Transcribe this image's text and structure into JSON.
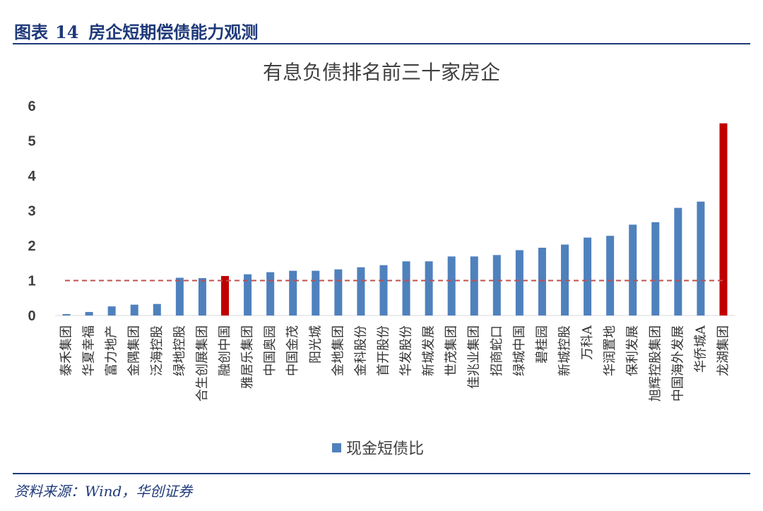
{
  "figure": {
    "label": "图表",
    "number": "14",
    "caption": "房企短期偿债能力观测"
  },
  "source": "资料来源：Wind，华创证券",
  "colors": {
    "bar": "#4f81bd",
    "highlight": "#c00000",
    "threshold": "#c0504d",
    "text": "#404040",
    "frame": "#1f3a7a"
  },
  "chart_data": {
    "type": "bar",
    "title": "有息负债排名前三十家房企",
    "xlabel": "",
    "ylabel": "",
    "ylim": [
      0,
      6
    ],
    "yticks": [
      0,
      1,
      2,
      3,
      4,
      5,
      6
    ],
    "grid": false,
    "legend": {
      "position": "bottom",
      "entries": [
        "现金短债比"
      ]
    },
    "threshold": 1,
    "categories": [
      "泰禾集团",
      "华夏幸福",
      "富力地产",
      "金隅集团",
      "泛海控股",
      "绿地控股",
      "合生创展集团",
      "融创中国",
      "雅居乐集团",
      "中国奥园",
      "中国金茂",
      "阳光城",
      "金地集团",
      "金科股份",
      "首开股份",
      "华发股份",
      "新城发展",
      "世茂集团",
      "佳兆业集团",
      "招商蛇口",
      "绿城中国",
      "碧桂园",
      "新城控股",
      "万科A",
      "华润置地",
      "保利发展",
      "旭辉控股集团",
      "中国海外发展",
      "华侨城A",
      "龙湖集团"
    ],
    "series": [
      {
        "name": "现金短债比",
        "values": [
          0.04,
          0.1,
          0.26,
          0.31,
          0.33,
          1.08,
          1.07,
          1.13,
          1.18,
          1.24,
          1.28,
          1.28,
          1.32,
          1.38,
          1.44,
          1.55,
          1.55,
          1.69,
          1.69,
          1.73,
          1.87,
          1.94,
          2.03,
          2.23,
          2.28,
          2.6,
          2.67,
          3.08,
          3.26,
          5.5
        ]
      }
    ],
    "highlight": [
      "融创中国",
      "龙湖集团"
    ]
  }
}
